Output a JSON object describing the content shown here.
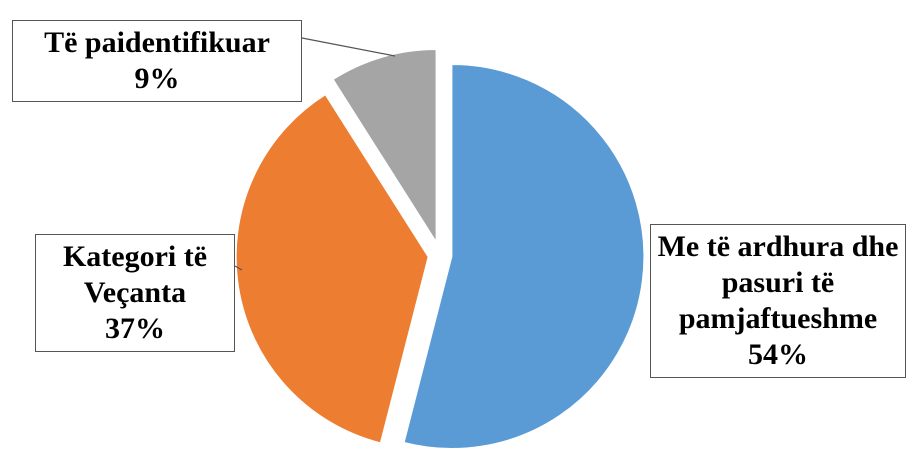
{
  "chart_data": {
    "type": "pie",
    "categories": [
      "Me të ardhura dhe pasuri të pamjaftueshme",
      "Kategori të Veçanta",
      "Të paidentifikuar"
    ],
    "values": [
      54,
      37,
      9
    ],
    "value_labels": [
      "54%",
      "37%",
      "9%"
    ],
    "colors": [
      "#5b9bd5",
      "#ed7d31",
      "#a5a5a5"
    ]
  }
}
